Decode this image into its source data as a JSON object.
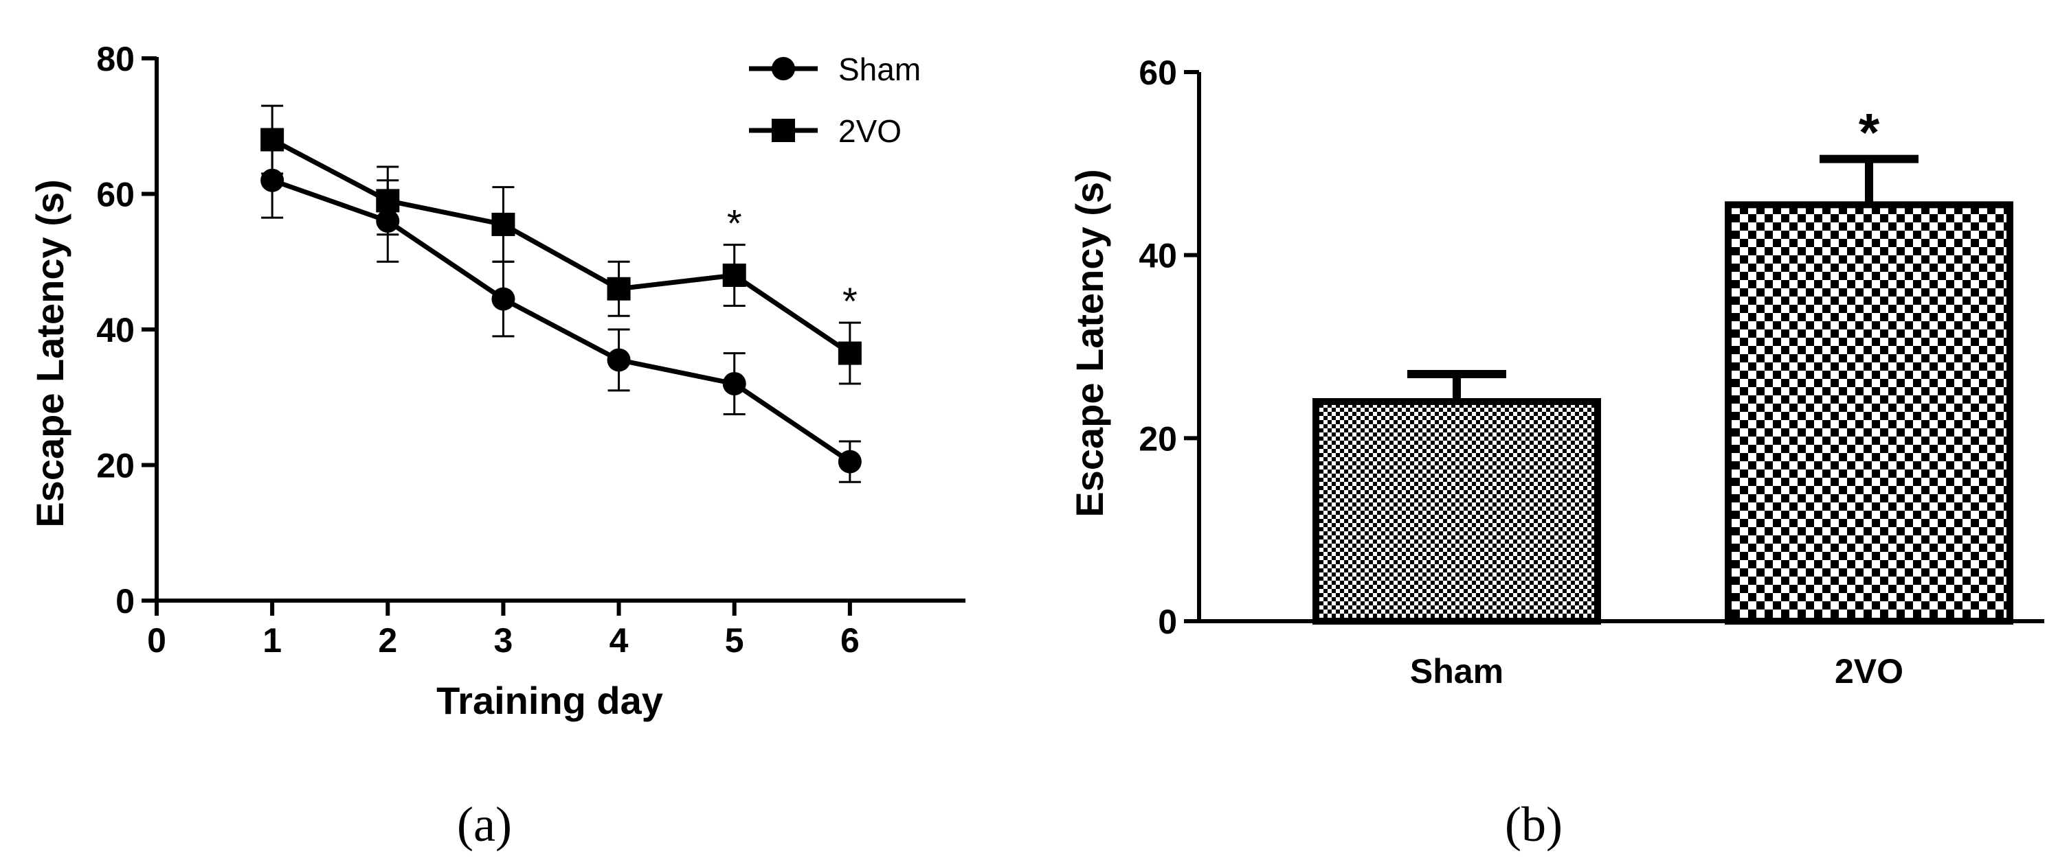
{
  "chart_data": [
    {
      "id": "a",
      "type": "line",
      "caption": "(a)",
      "xlabel": "Training day",
      "ylabel": "Escape Latency (s)",
      "xlim": [
        0,
        7
      ],
      "ylim": [
        0,
        80
      ],
      "xticks": [
        0,
        1,
        2,
        3,
        4,
        5,
        6
      ],
      "yticks": [
        0,
        20,
        40,
        60,
        80
      ],
      "legend_position": "top-right",
      "series": [
        {
          "name": "Sham",
          "marker": "circle",
          "x": [
            1,
            2,
            3,
            4,
            5,
            6
          ],
          "values": [
            62,
            56,
            44.5,
            35.5,
            32,
            20.5
          ],
          "errors": [
            5.5,
            6,
            5.5,
            4.5,
            4.5,
            3
          ]
        },
        {
          "name": "2VO",
          "marker": "square",
          "x": [
            1,
            2,
            3,
            4,
            5,
            6
          ],
          "values": [
            68,
            59,
            55.5,
            46,
            48,
            36.5
          ],
          "errors": [
            5,
            5,
            5.5,
            4,
            4.5,
            4.5
          ]
        }
      ],
      "annotations": [
        {
          "x": 5,
          "text": "*"
        },
        {
          "x": 6,
          "text": "*"
        }
      ]
    },
    {
      "id": "b",
      "type": "bar",
      "caption": "(b)",
      "xlabel": "",
      "ylabel": "Escape Latency (s)",
      "ylim": [
        0,
        60
      ],
      "yticks": [
        0,
        20,
        40,
        60
      ],
      "categories": [
        "Sham",
        "2VO"
      ],
      "values": [
        24,
        45.5
      ],
      "errors": [
        3,
        5
      ],
      "annotations": [
        {
          "category": "2VO",
          "text": "*"
        }
      ]
    }
  ]
}
